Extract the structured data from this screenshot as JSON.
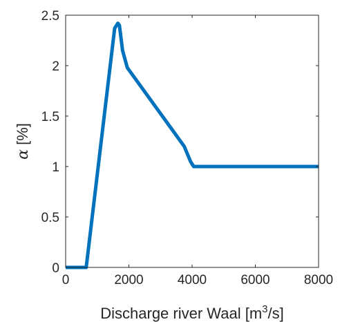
{
  "chart_data": {
    "type": "line",
    "xlabel": {
      "prefix": "Discharge river Waal [m",
      "superscript": "3",
      "suffix": "/s]"
    },
    "ylabel": {
      "symbol": "α",
      "unit": " [%]"
    },
    "xlim": [
      0,
      8000
    ],
    "ylim": [
      0,
      2.5
    ],
    "xticks": [
      0,
      2000,
      4000,
      6000,
      8000
    ],
    "xtick_labels": [
      "0",
      "2000",
      "4000",
      "6000",
      "8000"
    ],
    "yticks": [
      0,
      0.5,
      1,
      1.5,
      2,
      2.5
    ],
    "ytick_labels": [
      "0",
      "0.5",
      "1",
      "1.5",
      "2",
      "2.5"
    ],
    "grid": false,
    "box": true,
    "series": [
      {
        "color": "#0072bd",
        "x": [
          0,
          650,
          1550,
          1650,
          1700,
          1800,
          1950,
          3750,
          3950,
          4050,
          8000
        ],
        "y": [
          0,
          0,
          2.37,
          2.42,
          2.4,
          2.15,
          1.98,
          1.2,
          1.05,
          1.0,
          1.0
        ]
      }
    ],
    "axis_color": "#262626"
  }
}
